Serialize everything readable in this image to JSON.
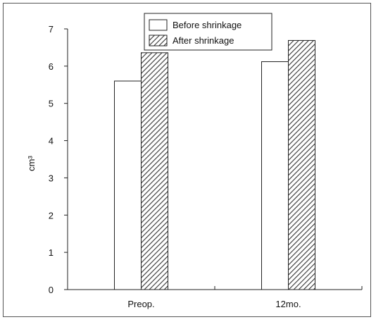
{
  "chart_data": {
    "type": "bar",
    "categories": [
      "Preop.",
      "12mo."
    ],
    "series": [
      {
        "name": "Before shrinkage",
        "values": [
          5.6,
          6.12
        ],
        "fill": "#ffffff"
      },
      {
        "name": "After shrinkage",
        "values": [
          6.36,
          6.69
        ],
        "fill": "hatch"
      }
    ],
    "ylabel": "cm³",
    "ylim": [
      0,
      7
    ],
    "yticks": [
      0,
      1,
      2,
      3,
      4,
      5,
      6,
      7
    ],
    "grid": false,
    "legend": "top-center"
  }
}
